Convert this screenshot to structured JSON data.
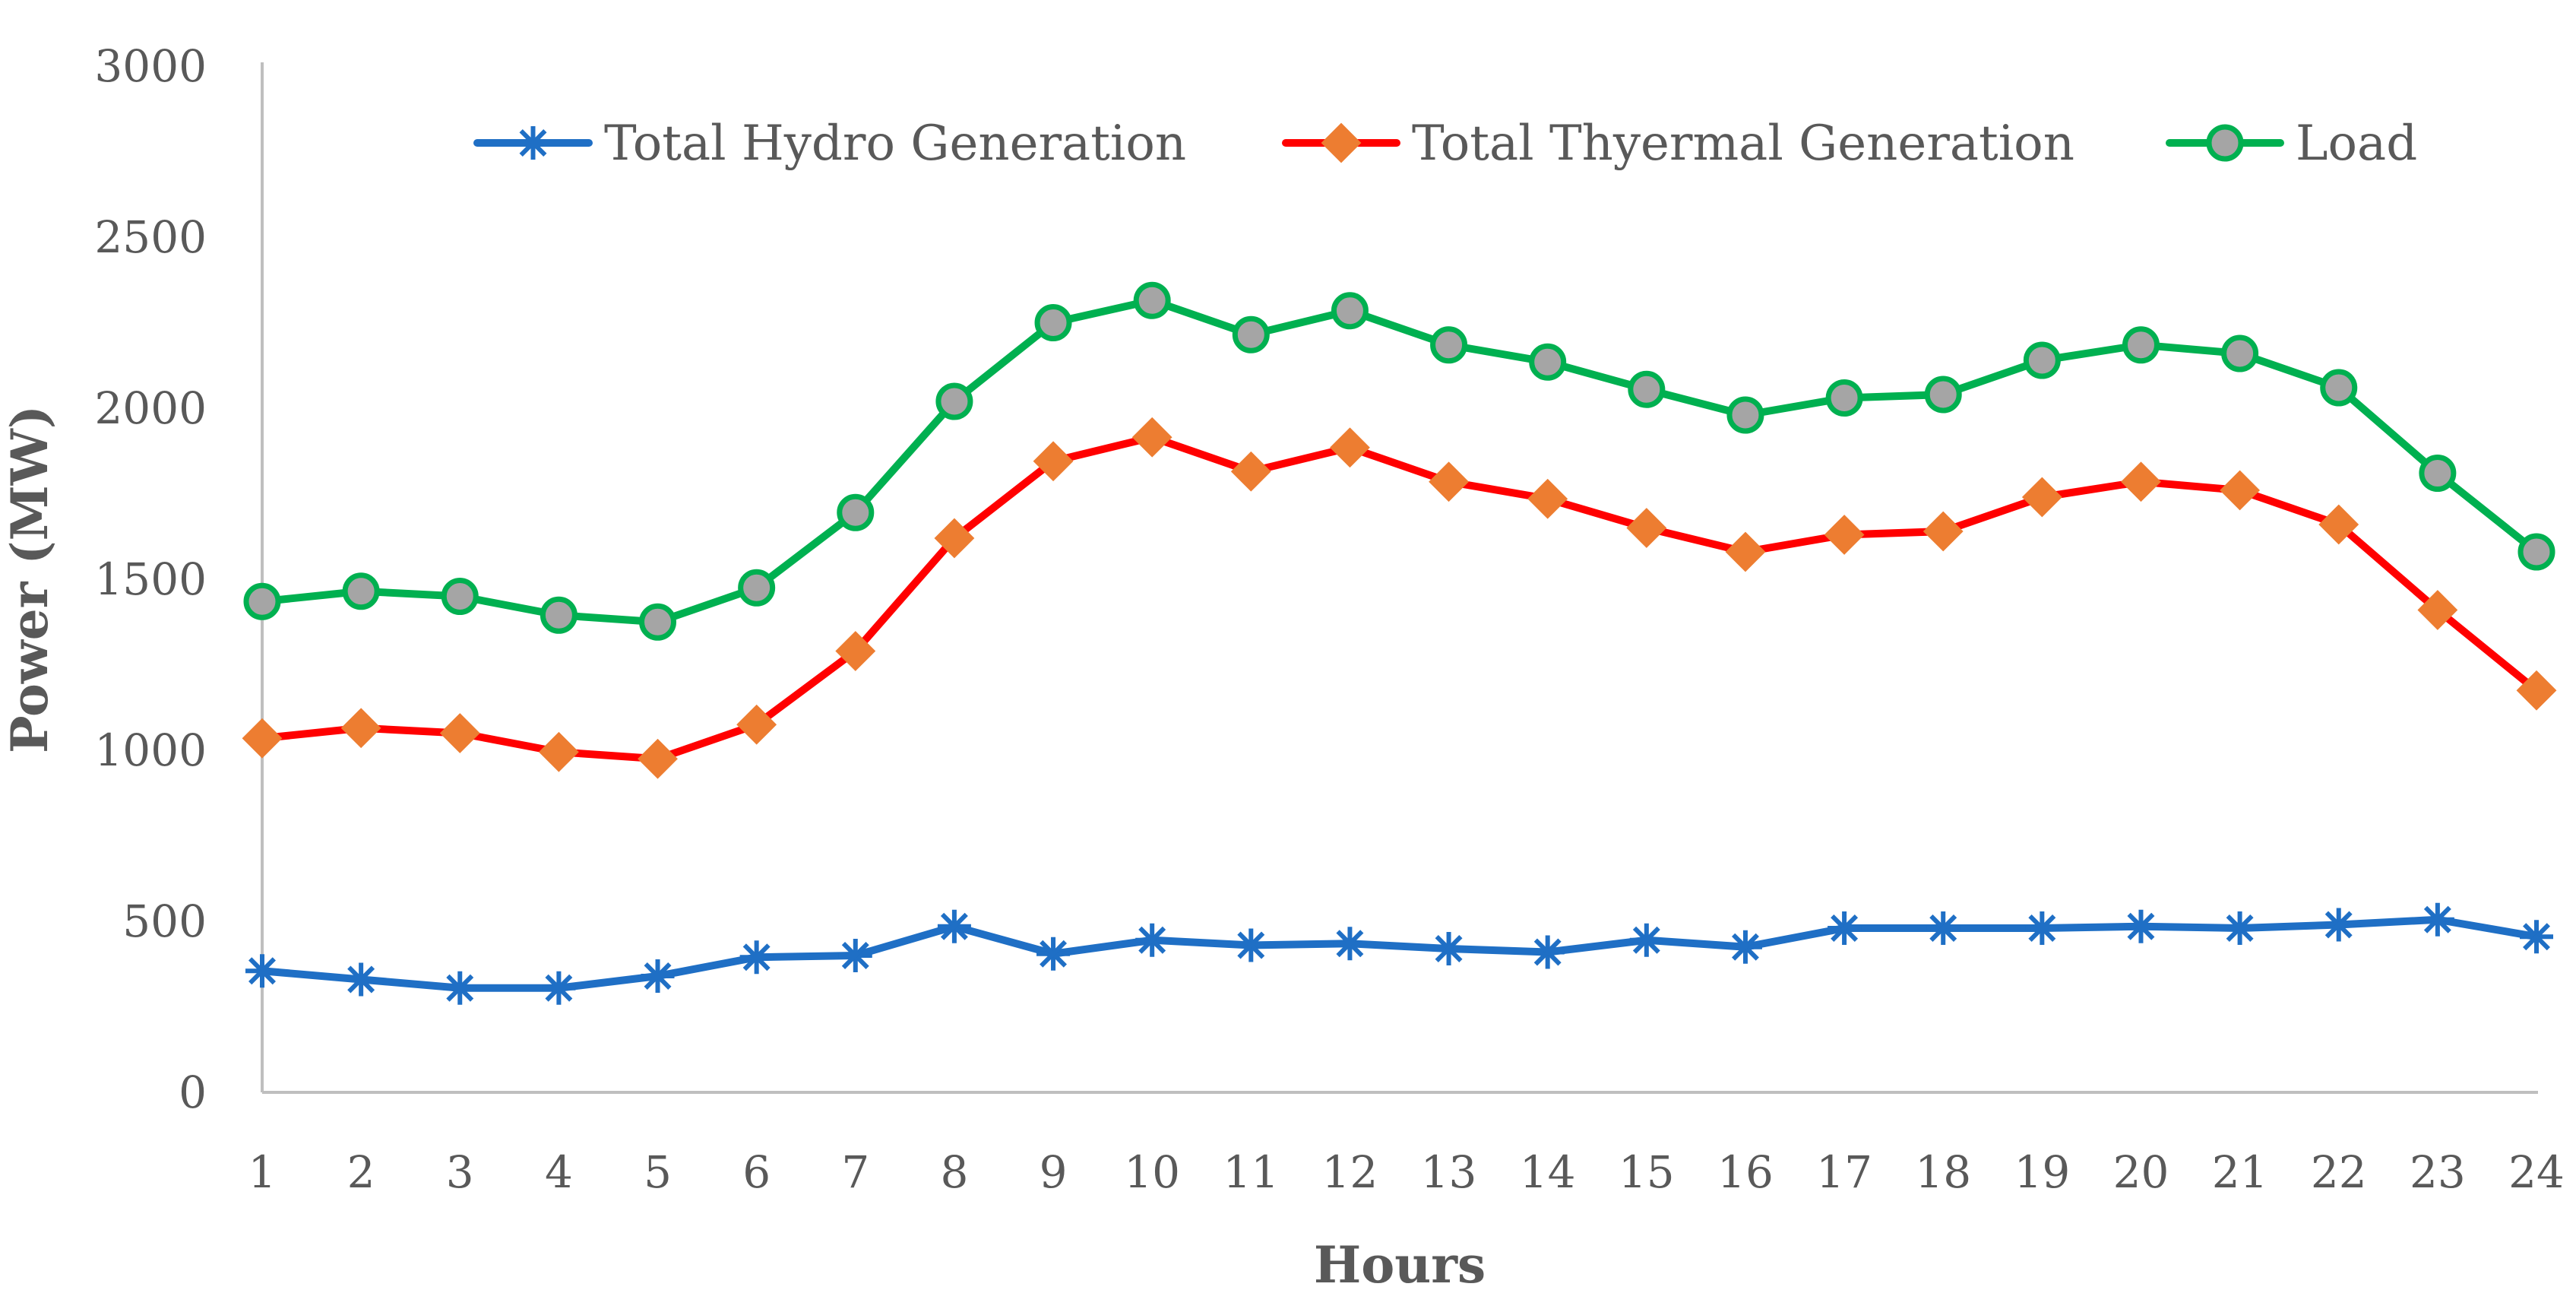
{
  "chart_data": {
    "type": "line",
    "title": "",
    "xlabel": "Hours",
    "ylabel": "Power (MW)",
    "x": [
      1,
      2,
      3,
      4,
      5,
      6,
      7,
      8,
      9,
      10,
      11,
      12,
      13,
      14,
      15,
      16,
      17,
      18,
      19,
      20,
      21,
      22,
      23,
      24
    ],
    "ylim": [
      0,
      3000
    ],
    "yticks": [
      0,
      500,
      1000,
      1500,
      2000,
      2500,
      3000
    ],
    "grid": false,
    "legend_position": "top",
    "series": [
      {
        "name": "Total Hydro Generation",
        "color": "#1f6fc5",
        "marker": "asterisk",
        "values": [
          355,
          330,
          305,
          305,
          340,
          395,
          400,
          485,
          405,
          445,
          430,
          435,
          420,
          410,
          445,
          425,
          480,
          480,
          480,
          485,
          480,
          490,
          505,
          455
        ]
      },
      {
        "name": "Total Thyermal Generation",
        "color": "#ff0000",
        "marker_color": "#ed7d31",
        "marker": "diamond",
        "values": [
          1035,
          1065,
          1050,
          995,
          975,
          1075,
          1290,
          1620,
          1845,
          1915,
          1815,
          1885,
          1785,
          1735,
          1650,
          1580,
          1630,
          1640,
          1740,
          1785,
          1760,
          1660,
          1410,
          1175
        ]
      },
      {
        "name": "Load",
        "color": "#00b050",
        "marker_color": "#a5a5a5",
        "marker": "circle",
        "values": [
          1435,
          1465,
          1450,
          1395,
          1375,
          1475,
          1695,
          2020,
          2250,
          2315,
          2215,
          2285,
          2185,
          2135,
          2055,
          1980,
          2030,
          2040,
          2140,
          2185,
          2160,
          2060,
          1810,
          1580
        ]
      }
    ]
  }
}
